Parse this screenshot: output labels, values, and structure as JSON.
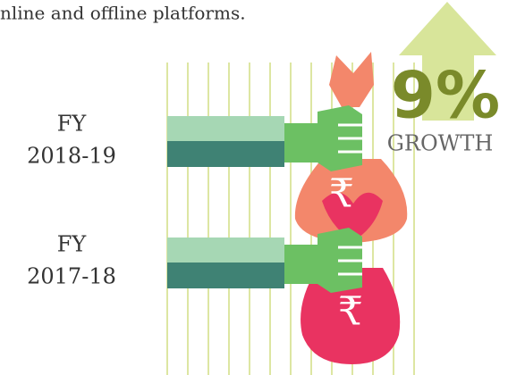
{
  "caption": "nline and offline platforms.",
  "rows": [
    {
      "label": [
        "FY",
        "2018-19"
      ]
    },
    {
      "label": [
        "FY",
        "2017-18"
      ]
    }
  ],
  "growth": {
    "value": "9%",
    "label": "GROWTH"
  },
  "bags": [
    {
      "symbol": "₹"
    },
    {
      "symbol": "₹"
    }
  ]
}
